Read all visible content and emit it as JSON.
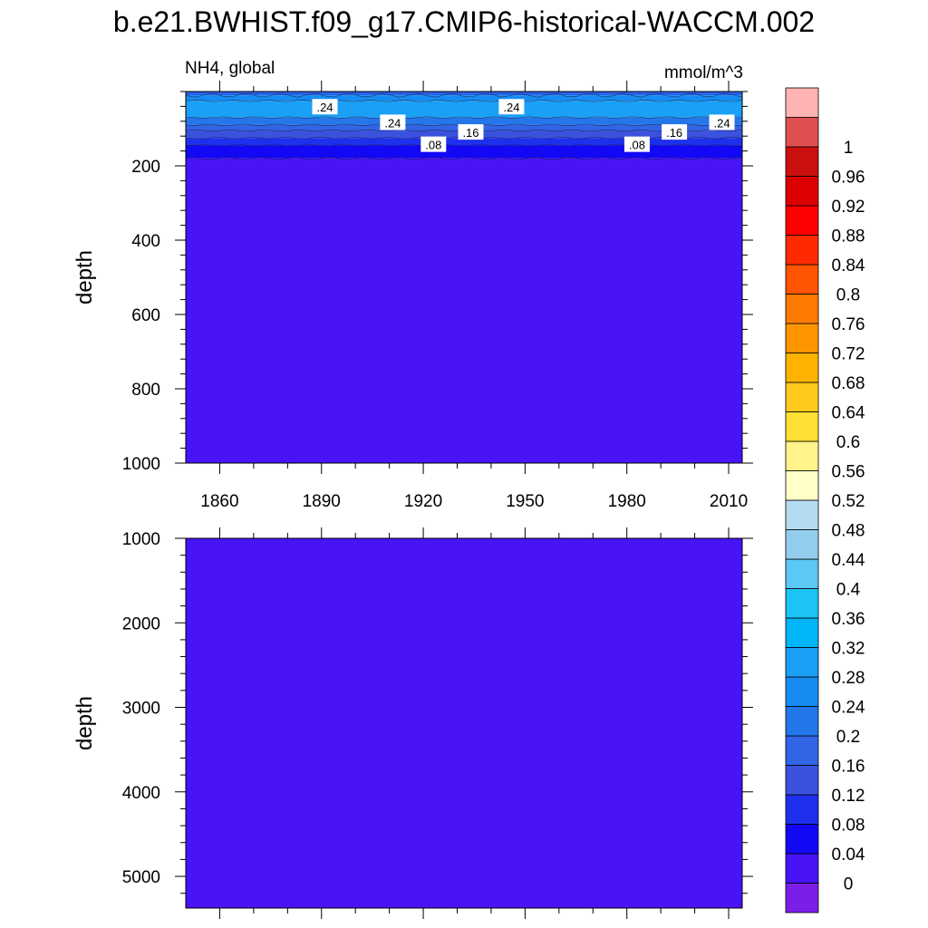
{
  "chart_data": {
    "type": "heatmap",
    "title": "b.e21.BWHIST.f09_g17.CMIP6-historical-WACCM.002",
    "left_string": "NH4, global",
    "right_string": "mmol/m^3",
    "panels": [
      {
        "ylabel": "depth",
        "ylim": [
          0,
          1000
        ],
        "y_reversed": true,
        "yticks": [
          "200",
          "400",
          "600",
          "800",
          "1000"
        ],
        "xlim": [
          1850,
          2014
        ],
        "xticks": [
          "1860",
          "1890",
          "1920",
          "1950",
          "1980",
          "2010"
        ],
        "bands": [
          {
            "from": 0,
            "to": 10,
            "color": "#2a62e8"
          },
          {
            "from": 10,
            "to": 25,
            "color": "#168cf2"
          },
          {
            "from": 25,
            "to": 70,
            "color": "#1aa0f5"
          },
          {
            "from": 70,
            "to": 90,
            "color": "#2477ea"
          },
          {
            "from": 90,
            "to": 105,
            "color": "#3264e6"
          },
          {
            "from": 105,
            "to": 125,
            "color": "#3a52de"
          },
          {
            "from": 125,
            "to": 145,
            "color": "#1e30ee"
          },
          {
            "from": 145,
            "to": 180,
            "color": "#1208f4"
          },
          {
            "from": 180,
            "to": 1000,
            "color": "#4814f5"
          }
        ],
        "contour_labels": [
          {
            "text": ".24",
            "year": 1891,
            "depth": 42
          },
          {
            "text": ".24",
            "year": 1911,
            "depth": 84
          },
          {
            "text": ".24",
            "year": 1946,
            "depth": 42
          },
          {
            "text": ".24",
            "year": 2008,
            "depth": 84
          },
          {
            "text": ".16",
            "year": 1934,
            "depth": 110
          },
          {
            "text": ".16",
            "year": 1994,
            "depth": 110
          },
          {
            "text": ".08",
            "year": 1923,
            "depth": 143
          },
          {
            "text": ".08",
            "year": 1983,
            "depth": 143
          }
        ]
      },
      {
        "ylabel": "depth",
        "ylim": [
          1000,
          5375
        ],
        "y_reversed": true,
        "yticks": [
          "1000",
          "2000",
          "3000",
          "4000",
          "5000"
        ],
        "xlim": [
          1850,
          2014
        ],
        "xticks": [],
        "bands": [
          {
            "from": 1000,
            "to": 5375,
            "color": "#4814f5"
          }
        ],
        "contour_labels": []
      }
    ],
    "colorbar": {
      "levels": [
        "0",
        "0.04",
        "0.08",
        "0.12",
        "0.16",
        "0.2",
        "0.24",
        "0.28",
        "0.32",
        "0.36",
        "0.4",
        "0.44",
        "0.48",
        "0.52",
        "0.56",
        "0.6",
        "0.64",
        "0.68",
        "0.72",
        "0.76",
        "0.8",
        "0.84",
        "0.88",
        "0.92",
        "0.96",
        "1"
      ],
      "colors": [
        "#7b1fe8",
        "#4814f5",
        "#1208f4",
        "#1e30ee",
        "#3a52de",
        "#3264e6",
        "#2477ea",
        "#168cf2",
        "#1aa0f5",
        "#02b4f8",
        "#1bc4f5",
        "#5bc8f5",
        "#93cdee",
        "#b3dcf2",
        "#ffffc8",
        "#fff38a",
        "#ffe034",
        "#ffca1d",
        "#ffb300",
        "#ff9600",
        "#ff7a00",
        "#ff5500",
        "#ff2a00",
        "#ff0000",
        "#dc0000",
        "#cc1010",
        "#e05050",
        "#ffb3b3"
      ]
    }
  }
}
